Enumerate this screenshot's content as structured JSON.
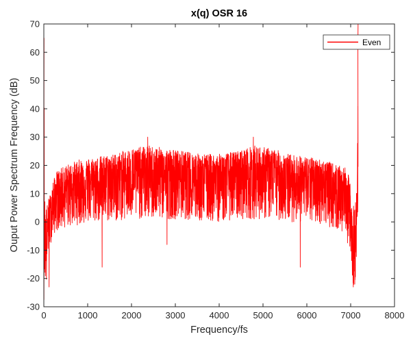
{
  "chart_data": {
    "type": "line",
    "title": "x(q)  OSR 16",
    "xlabel": "Frequency/fs",
    "ylabel": "Ouput Power Spectrum Frequency (dB)",
    "xlim": [
      0,
      8000
    ],
    "ylim": [
      -30,
      70
    ],
    "xticks": [
      0,
      1000,
      2000,
      3000,
      4000,
      5000,
      6000,
      7000,
      8000
    ],
    "yticks": [
      -30,
      -20,
      -10,
      0,
      10,
      20,
      30,
      40,
      50,
      60,
      70
    ],
    "grid": false,
    "legend_position": "top-right",
    "series": [
      {
        "name": "Even",
        "color": "#ff0000",
        "style": "noise-spectrum",
        "envelope_x": [
          0,
          20,
          60,
          100,
          150,
          200,
          300,
          500,
          800,
          1200,
          1600,
          2000,
          2400,
          2800,
          3200,
          3600,
          4000,
          4400,
          4800,
          5200,
          5600,
          6000,
          6400,
          6700,
          6900,
          6980,
          7050,
          7100,
          7150,
          7168
        ],
        "envelope_upper": [
          65,
          10,
          5,
          8,
          10,
          14,
          18,
          20,
          22,
          23,
          24,
          26,
          27,
          26,
          25,
          24,
          24,
          25,
          27,
          26,
          24,
          23,
          22,
          20,
          19,
          15,
          5,
          8,
          12,
          62
        ],
        "envelope_lower": [
          -29,
          -20,
          -23,
          -10,
          -8,
          -5,
          -3,
          -2,
          -1,
          0,
          0,
          1,
          1,
          1,
          1,
          0,
          0,
          1,
          1,
          1,
          0,
          0,
          -1,
          -3,
          -5,
          -12,
          -23,
          -22,
          -8,
          10
        ],
        "mean": [
          40,
          -5,
          -8,
          0,
          3,
          6,
          10,
          12,
          14,
          15,
          16,
          17,
          17,
          17,
          16,
          16,
          16,
          16,
          17,
          17,
          16,
          15,
          14,
          12,
          10,
          3,
          -10,
          -8,
          3,
          40
        ],
        "dips": [
          {
            "x": 120,
            "y": -23
          },
          {
            "x": 1330,
            "y": -16
          },
          {
            "x": 2810,
            "y": -8
          },
          {
            "x": 5850,
            "y": -16
          },
          {
            "x": 7060,
            "y": -23
          }
        ],
        "peaks": [
          {
            "x": 2370,
            "y": 30
          },
          {
            "x": 4780,
            "y": 30
          }
        ],
        "edge_peaks": [
          {
            "x": 5,
            "y": 65
          },
          {
            "x": 7165,
            "y": 62
          }
        ]
      }
    ]
  }
}
